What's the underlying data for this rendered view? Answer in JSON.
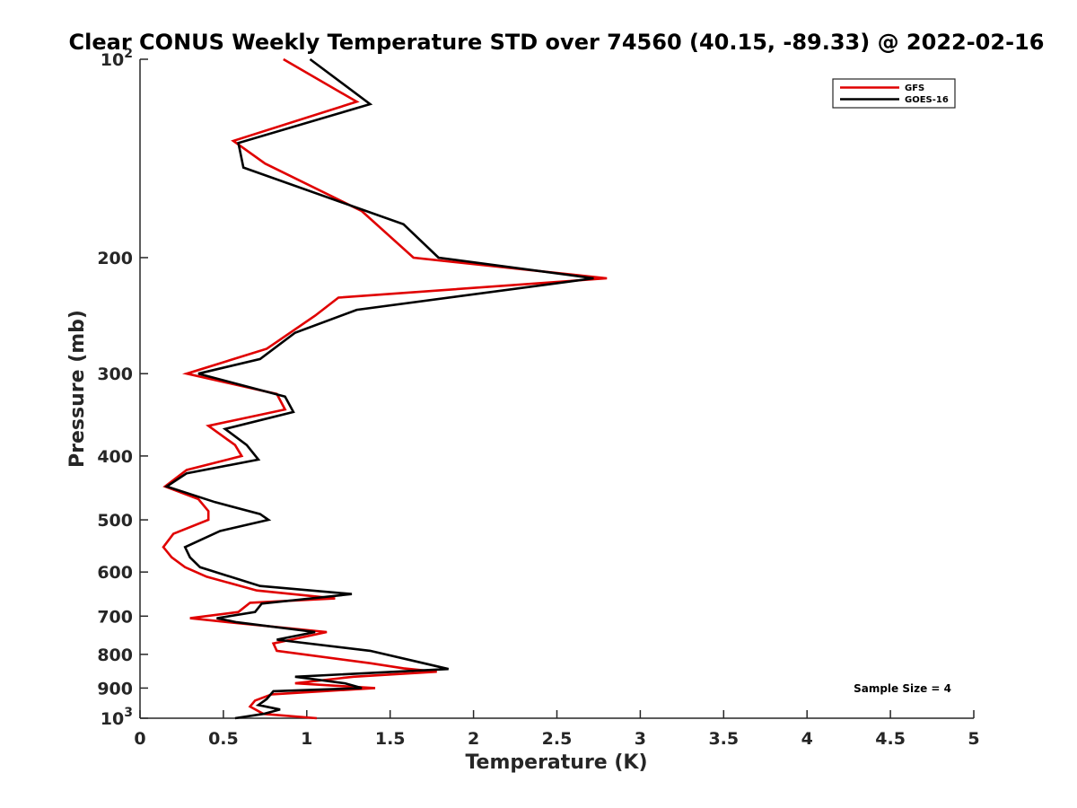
{
  "chart_data": {
    "type": "line",
    "title": "Clear CONUS Weekly Temperature STD over 74560 (40.15, -89.33) @ 2022-02-16",
    "xlabel": "Temperature (K)",
    "ylabel": "Pressure (mb)",
    "xlim": [
      0,
      5
    ],
    "ylim": [
      100,
      1000
    ],
    "yscale": "log",
    "y_reversed": true,
    "x_ticks": [
      "0",
      "0.5",
      "1",
      "1.5",
      "2",
      "2.5",
      "3",
      "3.5",
      "4",
      "4.5",
      "5"
    ],
    "y_ticks": [
      {
        "value": 100,
        "label": "10",
        "sup": "2"
      },
      {
        "value": 200,
        "label": "200",
        "sup": ""
      },
      {
        "value": 300,
        "label": "300",
        "sup": ""
      },
      {
        "value": 400,
        "label": "400",
        "sup": ""
      },
      {
        "value": 500,
        "label": "500",
        "sup": ""
      },
      {
        "value": 600,
        "label": "600",
        "sup": ""
      },
      {
        "value": 700,
        "label": "700",
        "sup": ""
      },
      {
        "value": 800,
        "label": "800",
        "sup": ""
      },
      {
        "value": 900,
        "label": "900",
        "sup": ""
      },
      {
        "value": 1000,
        "label": "10",
        "sup": "3"
      }
    ],
    "grid": false,
    "legend_position": "top-right",
    "annotation": "Sample Size = 4",
    "series": [
      {
        "name": "GFS",
        "color": "#e00000",
        "x": [
          0.86,
          1.3,
          0.56,
          0.75,
          1.33,
          1.64,
          2.8,
          1.19,
          1.05,
          0.76,
          0.28,
          0.82,
          0.87,
          0.41,
          0.57,
          0.61,
          0.28,
          0.15,
          0.35,
          0.41,
          0.41,
          0.2,
          0.14,
          0.19,
          0.27,
          0.4,
          0.7,
          1.17,
          0.66,
          0.59,
          0.3,
          0.53,
          1.12,
          0.8,
          0.82,
          1.38,
          1.58,
          1.78,
          1.28,
          0.93,
          1.41,
          0.79,
          0.69,
          0.66,
          0.74,
          1.06
        ],
        "y": [
          100,
          116,
          133,
          144,
          170,
          200,
          215,
          230,
          245,
          275,
          300,
          322,
          340,
          360,
          385,
          400,
          420,
          445,
          465,
          485,
          500,
          525,
          550,
          570,
          590,
          610,
          640,
          658,
          668,
          690,
          705,
          715,
          740,
          770,
          790,
          825,
          840,
          850,
          865,
          885,
          900,
          920,
          940,
          960,
          985,
          1000
        ]
      },
      {
        "name": "GOES-16",
        "color": "#000000",
        "x": [
          1.02,
          1.38,
          0.59,
          0.62,
          1.58,
          1.79,
          2.72,
          1.3,
          0.93,
          0.72,
          0.35,
          0.87,
          0.92,
          0.51,
          0.64,
          0.71,
          0.28,
          0.16,
          0.45,
          0.72,
          0.77,
          0.48,
          0.27,
          0.3,
          0.36,
          0.72,
          1.27,
          0.73,
          0.69,
          0.46,
          0.58,
          1.05,
          0.82,
          1.38,
          1.7,
          1.85,
          0.93,
          1.23,
          1.33,
          0.8,
          0.76,
          0.71,
          0.84,
          0.74,
          0.57
        ],
        "y": [
          100,
          117,
          134,
          146,
          178,
          200,
          215,
          240,
          260,
          285,
          300,
          325,
          343,
          364,
          385,
          405,
          425,
          445,
          470,
          490,
          500,
          520,
          550,
          570,
          590,
          630,
          648,
          670,
          690,
          705,
          715,
          740,
          760,
          790,
          825,
          842,
          865,
          885,
          900,
          910,
          935,
          955,
          970,
          985,
          1000
        ]
      }
    ]
  }
}
